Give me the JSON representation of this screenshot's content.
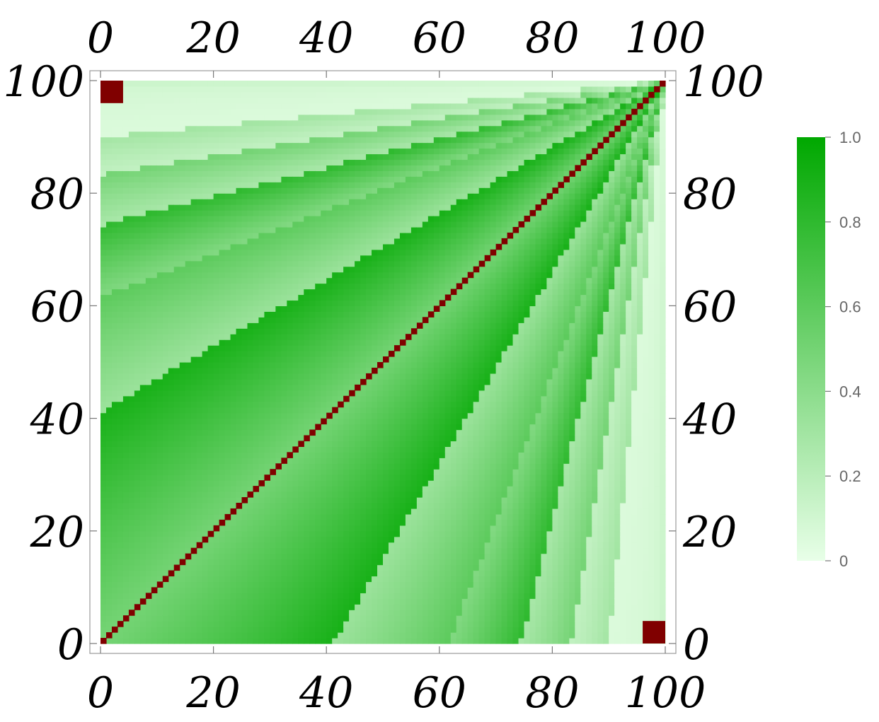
{
  "chart_data": {
    "type": "heatmap",
    "title": "",
    "xlabel": "",
    "ylabel": "",
    "xlim": [
      0,
      100
    ],
    "ylim": [
      0,
      100
    ],
    "xticks": [
      "0",
      "20",
      "40",
      "60",
      "80",
      "100"
    ],
    "yticks": [
      "0",
      "20",
      "40",
      "60",
      "80",
      "100"
    ],
    "tick_values": [
      0,
      20,
      40,
      60,
      80,
      100
    ],
    "grid": false,
    "colorscale": {
      "range": [
        0,
        1
      ],
      "ticks": [
        "1.0",
        "0.8",
        "0.6",
        "0.4",
        "0.2",
        "0"
      ],
      "tick_values": [
        1.0,
        0.8,
        0.6,
        0.4,
        0.2,
        0.0
      ],
      "low_color": "#e8ffe8",
      "high_color": "#00a800"
    },
    "diagonal_color": "#800000",
    "description_curves": {
      "boundaries_k": [
        1,
        1.7,
        2.6,
        3.9,
        6,
        10
      ],
      "band_values": [
        0.7,
        0.9,
        0.6,
        0.8,
        0.5,
        0.3,
        0.1
      ]
    }
  }
}
